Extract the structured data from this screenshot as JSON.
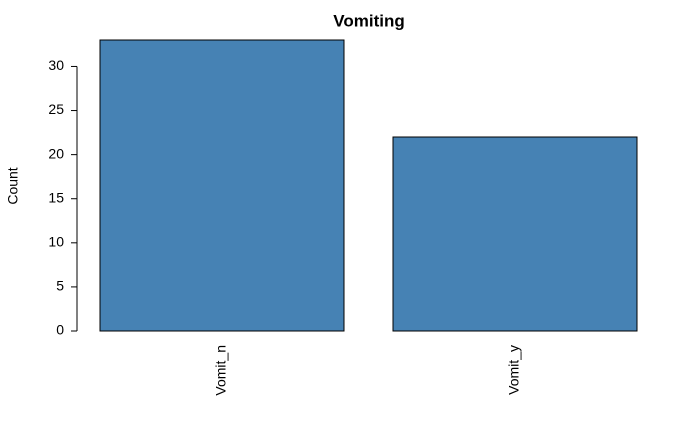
{
  "chart_data": {
    "type": "bar",
    "title": "Vomiting",
    "ylabel": "Count",
    "categories": [
      "Vomit_n",
      "Vomit_y"
    ],
    "values": [
      33,
      22
    ],
    "color": "#4682b4",
    "ylim": [
      0,
      33
    ],
    "yticks": [
      0,
      5,
      10,
      15,
      20,
      25,
      30
    ]
  }
}
